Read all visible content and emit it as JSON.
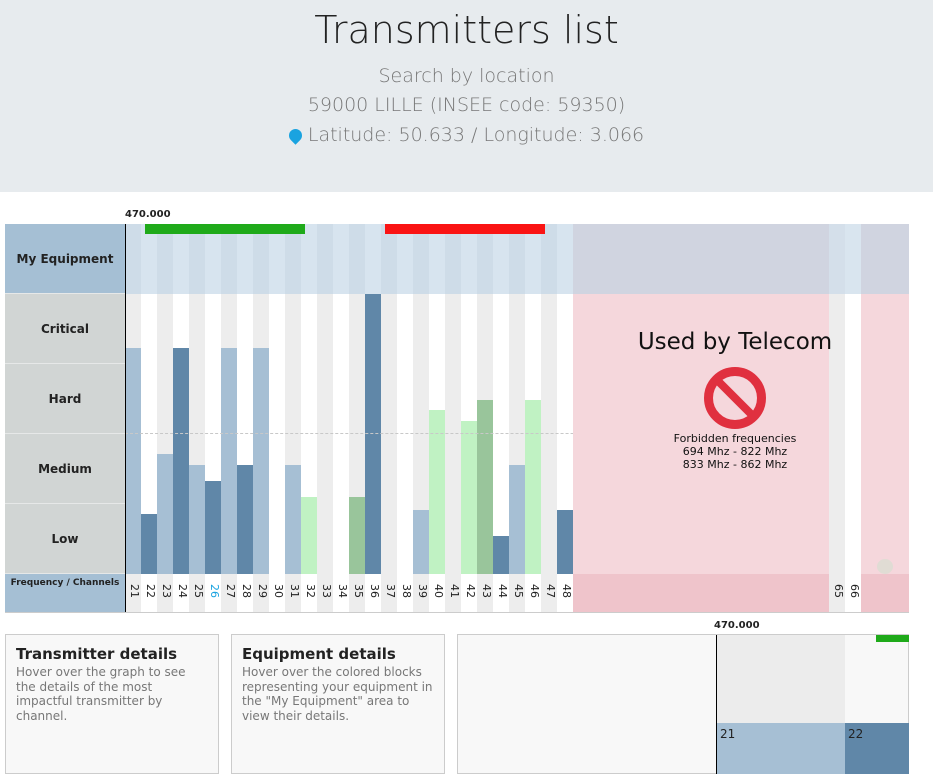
{
  "header": {
    "title": "Transmitters list",
    "search_by": "Search by location",
    "location": "59000 LILLE (INSEE code: 59350)",
    "coords": "Latitude: 50.633 / Longitude: 3.066"
  },
  "chart": {
    "start_freq": "470.000",
    "rows": [
      "My Equipment",
      "Critical",
      "Hard",
      "Medium",
      "Low"
    ],
    "freq_label": "Frequency / Channels",
    "telecom": {
      "title": "Used by Telecom",
      "subtitle": "Forbidden frequencies",
      "range1": "694 Mhz - 822 Mhz",
      "range2": "833 Mhz - 862 Mhz"
    },
    "extra_channels": [
      "65",
      "66"
    ]
  },
  "chart_data": {
    "type": "bar",
    "ylim": [
      0,
      4
    ],
    "levels": [
      "Low",
      "Medium",
      "Hard",
      "Critical"
    ],
    "colors": {
      "light_blue": "#a6bfd4",
      "dark_blue": "#6087a8",
      "light_green": "#c0f2c3",
      "green": "#99c59b",
      "equipment_green": "#1faa1a",
      "equipment_red": "#fa1414"
    },
    "channels": [
      "21",
      "22",
      "23",
      "24",
      "25",
      "26",
      "27",
      "28",
      "29",
      "30",
      "31",
      "32",
      "33",
      "34",
      "35",
      "36",
      "37",
      "38",
      "39",
      "40",
      "41",
      "42",
      "43",
      "44",
      "45",
      "46",
      "47",
      "48"
    ],
    "values": [
      3.23,
      0.86,
      1.72,
      3.23,
      1.56,
      1.33,
      3.23,
      1.56,
      3.23,
      0,
      1.56,
      1.1,
      0,
      0,
      1.1,
      4,
      0,
      0,
      0.92,
      2.34,
      0,
      2.19,
      2.48,
      0.54,
      1.56,
      2.49,
      0,
      0.92
    ],
    "bar_colors": [
      "light_blue",
      "dark_blue",
      "light_blue",
      "dark_blue",
      "light_blue",
      "dark_blue",
      "light_blue",
      "dark_blue",
      "light_blue",
      "",
      "light_blue",
      "light_green",
      "",
      "",
      "green",
      "dark_blue",
      "",
      "",
      "light_blue",
      "light_green",
      "",
      "light_green",
      "green",
      "dark_blue",
      "light_blue",
      "light_green",
      "",
      "dark_blue"
    ],
    "highlighted_channel": "26",
    "equipment": [
      {
        "color": "equipment_green",
        "from_channel": "22",
        "to_channel": "32"
      },
      {
        "color": "equipment_red",
        "from_channel": "37",
        "to_channel": "47"
      }
    ]
  },
  "panels": {
    "transmitter": {
      "title": "Transmitter details",
      "text": "Hover over the graph to see the details of the most impactful transmitter by channel."
    },
    "equipment": {
      "title": "Equipment details",
      "text": "Hover over the colored blocks representing your equipment in the \"My Equipment\" area to view their details."
    }
  },
  "minimap": {
    "start_freq": "470.000",
    "channels": [
      "21",
      "22"
    ]
  }
}
